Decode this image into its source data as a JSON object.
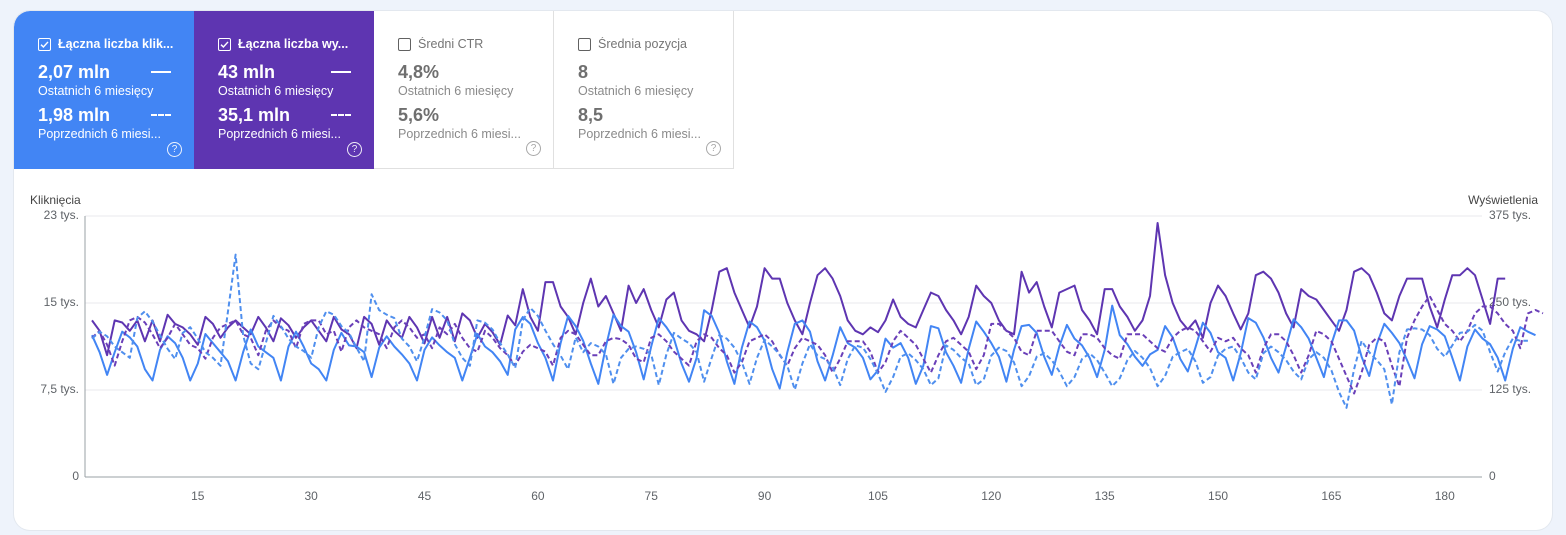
{
  "tiles": [
    {
      "title": "Łączna liczba klik...",
      "checked": true,
      "current_value": "2,07 mln",
      "current_label": "Ostatnich 6 miesięcy",
      "previous_value": "1,98 mln",
      "previous_label": "Poprzednich 6 miesi..."
    },
    {
      "title": "Łączna liczba wy...",
      "checked": true,
      "current_value": "43 mln",
      "current_label": "Ostatnich 6 miesięcy",
      "previous_value": "35,1 mln",
      "previous_label": "Poprzednich 6 miesi..."
    },
    {
      "title": "Średni CTR",
      "checked": false,
      "current_value": "4,8%",
      "current_label": "Ostatnich 6 miesięcy",
      "previous_value": "5,6%",
      "previous_label": "Poprzednich 6 miesi..."
    },
    {
      "title": "Średnia pozycja",
      "checked": false,
      "current_value": "8",
      "current_label": "Ostatnich 6 miesięcy",
      "previous_value": "8,5",
      "previous_label": "Poprzednich 6 miesi..."
    }
  ],
  "help_glyph": "?",
  "colors": {
    "clicks": "#4285f4",
    "clicks_prev": "#4f8fee",
    "impressions": "#5e35b1",
    "impressions_prev": "#6a3fb8",
    "grid": "#e8eaed"
  },
  "chart_data": {
    "type": "line",
    "ylabel_left": "Kliknięcia",
    "ylabel_right": "Wyświetlenia",
    "y_ticks_left": [
      "0",
      "7,5 tys.",
      "15 tys.",
      "23 tys."
    ],
    "y_ticks_right": [
      "0",
      "125 tys.",
      "250 tys.",
      "375 tys."
    ],
    "ylim_left": [
      0,
      23000
    ],
    "ylim_right": [
      0,
      375000
    ],
    "x_ticks": [
      "15",
      "30",
      "45",
      "60",
      "75",
      "90",
      "105",
      "120",
      "135",
      "150",
      "165",
      "180"
    ],
    "x_range": [
      1,
      184
    ],
    "grid": true,
    "series": [
      {
        "name": "",
        "axis": "right",
        "style": "solid",
        "color": "#5e35b1",
        "values": [
          225000,
          210000,
          175000,
          225000,
          222000,
          210000,
          225000,
          195000,
          225000,
          195000,
          233000,
          220000,
          215000,
          205000,
          190000,
          230000,
          220000,
          200000,
          215000,
          225000,
          215000,
          205000,
          230000,
          215000,
          195000,
          228000,
          218000,
          200000,
          215000,
          225000,
          210000,
          195000,
          230000,
          212000,
          205000,
          185000,
          230000,
          220000,
          190000,
          225000,
          210000,
          200000,
          230000,
          215000,
          192000,
          230000,
          200000,
          230000,
          195000,
          235000,
          225000,
          200000,
          220000,
          208000,
          190000,
          232000,
          218000,
          270000,
          230000,
          210000,
          280000,
          280000,
          245000,
          230000,
          205000,
          250000,
          285000,
          245000,
          260000,
          235000,
          210000,
          275000,
          250000,
          270000,
          240000,
          215000,
          255000,
          265000,
          225000,
          210000,
          205000,
          195000,
          240000,
          295000,
          300000,
          265000,
          240000,
          215000,
          245000,
          300000,
          285000,
          285000,
          250000,
          225000,
          205000,
          250000,
          290000,
          300000,
          285000,
          260000,
          225000,
          210000,
          205000,
          215000,
          208000,
          225000,
          255000,
          230000,
          220000,
          215000,
          240000,
          265000,
          260000,
          240000,
          225000,
          205000,
          230000,
          275000,
          260000,
          250000,
          225000,
          210000,
          205000,
          295000,
          265000,
          280000,
          245000,
          215000,
          265000,
          270000,
          275000,
          240000,
          225000,
          205000,
          270000,
          270000,
          245000,
          230000,
          210000,
          225000,
          260000,
          365000,
          290000,
          250000,
          225000,
          212000,
          225000,
          200000,
          250000,
          275000,
          260000,
          235000,
          212000,
          235000,
          290000,
          295000,
          285000,
          265000,
          235000,
          215000,
          270000,
          260000,
          255000,
          240000,
          225000,
          210000,
          240000,
          295000,
          300000,
          290000,
          265000,
          235000,
          225000,
          260000,
          285000,
          285000,
          285000,
          245000,
          215000,
          255000,
          290000,
          290000,
          300000,
          290000,
          255000,
          220000,
          285000,
          285000
        ]
      },
      {
        "name": "",
        "axis": "left",
        "style": "solid",
        "color": "#4285f4",
        "values": [
          12500,
          11000,
          9000,
          11000,
          12800,
          12300,
          11500,
          9500,
          8500,
          11200,
          12400,
          11800,
          10500,
          8500,
          10000,
          12600,
          11800,
          11000,
          10200,
          8500,
          11000,
          13000,
          11500,
          11000,
          10500,
          8500,
          11500,
          12800,
          11500,
          10000,
          9500,
          8500,
          11200,
          12700,
          11600,
          11500,
          11000,
          8800,
          11400,
          12400,
          11500,
          10800,
          10000,
          8500,
          11200,
          12300,
          11600,
          11000,
          10500,
          8500,
          10500,
          12600,
          11500,
          11000,
          10200,
          9000,
          13000,
          14100,
          13500,
          11800,
          10500,
          8500,
          11800,
          14200,
          13300,
          12000,
          10000,
          8200,
          11500,
          14300,
          13300,
          12800,
          11000,
          8600,
          11500,
          14000,
          13200,
          12200,
          10000,
          8400,
          10500,
          14700,
          14200,
          12700,
          10200,
          8200,
          11400,
          13700,
          13200,
          12000,
          9500,
          7800,
          11000,
          13500,
          13800,
          12800,
          10200,
          8500,
          10700,
          13200,
          11800,
          11400,
          10500,
          8600,
          9400,
          12200,
          11400,
          11800,
          10500,
          8200,
          9800,
          13300,
          13100,
          11000,
          9800,
          8300,
          11300,
          13700,
          12800,
          11800,
          10600,
          8400,
          11200,
          13300,
          13400,
          12700,
          10600,
          9000,
          11500,
          13400,
          12200,
          11600,
          10500,
          8800,
          11200,
          15100,
          12500,
          11700,
          10600,
          9800,
          10800,
          11200,
          13300,
          12300,
          10400,
          9300,
          11400,
          13600,
          12700,
          11000,
          10500,
          8500,
          10900,
          14000,
          13600,
          12300,
          10500,
          9200,
          11500,
          13900,
          13200,
          12200,
          10500,
          8800,
          11700,
          13800,
          13800,
          12900,
          10600,
          8900,
          11700,
          13500,
          12700,
          11800,
          10300,
          8700,
          11700,
          13300,
          13000,
          12400,
          10500,
          8500,
          11500,
          13000,
          12200,
          11700,
          10500,
          8500,
          11300,
          13200,
          12800,
          12500
        ]
      },
      {
        "name": "",
        "axis": "right",
        "style": "dashed",
        "color": "#6a3fb8",
        "values": [
          200000,
          210000,
          190000,
          160000,
          195000,
          225000,
          230000,
          222000,
          205000,
          185000,
          200000,
          220000,
          205000,
          190000,
          185000,
          170000,
          200000,
          215000,
          220000,
          225000,
          205000,
          200000,
          175000,
          210000,
          225000,
          215000,
          210000,
          185000,
          220000,
          225000,
          225000,
          205000,
          210000,
          180000,
          215000,
          225000,
          215000,
          210000,
          205000,
          185000,
          215000,
          225000,
          215000,
          200000,
          205000,
          185000,
          215000,
          205000,
          220000,
          200000,
          185000,
          180000,
          210000,
          200000,
          185000,
          175000,
          160000,
          180000,
          190000,
          185000,
          180000,
          160000,
          200000,
          210000,
          205000,
          190000,
          175000,
          175000,
          195000,
          200000,
          198000,
          190000,
          170000,
          165000,
          200000,
          205000,
          195000,
          180000,
          170000,
          160000,
          195000,
          205000,
          200000,
          185000,
          175000,
          150000,
          165000,
          195000,
          200000,
          205000,
          195000,
          175000,
          160000,
          185000,
          200000,
          195000,
          190000,
          175000,
          150000,
          170000,
          195000,
          195000,
          195000,
          180000,
          150000,
          165000,
          195000,
          210000,
          200000,
          190000,
          170000,
          150000,
          175000,
          195000,
          200000,
          190000,
          180000,
          155000,
          175000,
          220000,
          220000,
          210000,
          200000,
          180000,
          175000,
          210000,
          210000,
          210000,
          195000,
          180000,
          175000,
          205000,
          205000,
          200000,
          185000,
          175000,
          170000,
          205000,
          205000,
          205000,
          195000,
          185000,
          180000,
          200000,
          210000,
          215000,
          210000,
          195000,
          180000,
          200000,
          195000,
          200000,
          185000,
          175000,
          150000,
          185000,
          205000,
          205000,
          195000,
          175000,
          150000,
          175000,
          210000,
          205000,
          195000,
          170000,
          145000,
          120000,
          150000,
          190000,
          200000,
          195000,
          160000,
          130000,
          200000,
          225000,
          245000,
          260000,
          240000,
          220000,
          210000,
          195000,
          210000,
          235000,
          245000,
          245000,
          235000,
          220000,
          210000,
          185000,
          235000,
          240000,
          235000
        ]
      },
      {
        "name": "",
        "axis": "left",
        "style": "dashed",
        "color": "#4f8fee",
        "values": [
          12200,
          12800,
          12400,
          11500,
          11000,
          10500,
          14000,
          14600,
          13700,
          12500,
          11300,
          10400,
          12700,
          13200,
          12200,
          11000,
          10500,
          9800,
          14600,
          19600,
          12500,
          10000,
          9500,
          11800,
          14200,
          13300,
          12200,
          11500,
          11100,
          10500,
          13200,
          14600,
          14300,
          13300,
          12700,
          11400,
          10200,
          16100,
          14700,
          14300,
          14000,
          12200,
          11500,
          10200,
          12300,
          14800,
          14500,
          13800,
          11700,
          10500,
          9800,
          13800,
          13600,
          13000,
          11800,
          10800,
          9600,
          13800,
          14900,
          14200,
          12900,
          11700,
          10700,
          9500,
          12300,
          11000,
          11800,
          11500,
          10800,
          8200,
          10500,
          11300,
          11500,
          11300,
          10800,
          8100,
          10800,
          12700,
          12200,
          11800,
          11000,
          8400,
          10500,
          12500,
          12200,
          11400,
          10100,
          8200,
          10500,
          12100,
          11500,
          10800,
          9800,
          7700,
          10000,
          11700,
          10700,
          10400,
          9700,
          8100,
          10400,
          11600,
          11400,
          10400,
          9100,
          7500,
          8800,
          10600,
          10900,
          10300,
          9500,
          8100,
          8700,
          11600,
          11200,
          10500,
          10000,
          8100,
          8600,
          10700,
          11400,
          11100,
          10100,
          8000,
          8900,
          10600,
          10900,
          10300,
          9300,
          8000,
          8800,
          10400,
          10900,
          10300,
          9200,
          8000,
          8700,
          10300,
          11100,
          10500,
          9600,
          8000,
          8900,
          10600,
          11000,
          11300,
          10200,
          8300,
          8800,
          10700,
          11300,
          11500,
          10500,
          9200,
          8600,
          10900,
          11500,
          11000,
          10300,
          9300,
          8600,
          10400,
          11000,
          10500,
          9400,
          7500,
          6100,
          9500,
          12000,
          11000,
          10300,
          9500,
          6400,
          11000,
          13000,
          13100,
          13000,
          12500,
          11300,
          10600,
          11600,
          12700,
          12800,
          13400,
          12900,
          11000,
          9300,
          11000,
          12200,
          12000,
          12000
        ]
      }
    ]
  }
}
